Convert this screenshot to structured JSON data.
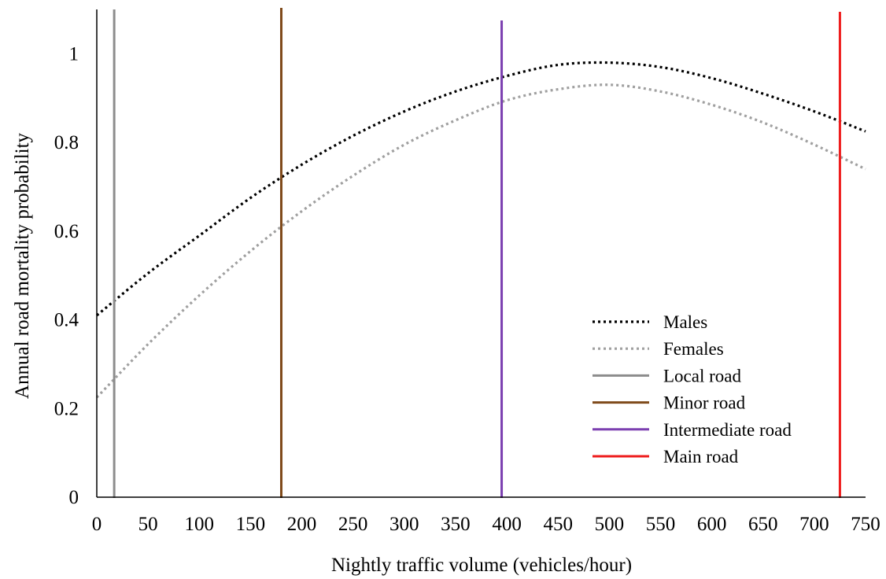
{
  "chart_data": {
    "type": "line",
    "title": "",
    "xlabel": "Nightly traffic volume (vehicles/hour)",
    "ylabel": "Annual road mortality probability",
    "xlim": [
      0,
      750
    ],
    "ylim": [
      0,
      1.0
    ],
    "x_ticks": [
      "0",
      "50",
      "100",
      "150",
      "200",
      "250",
      "300",
      "350",
      "400",
      "450",
      "500",
      "550",
      "600",
      "650",
      "700",
      "750"
    ],
    "y_ticks": [
      "0",
      "0.2",
      "0.4",
      "0.6",
      "0.8",
      "1"
    ],
    "grid": false,
    "legend_position": "right",
    "series": [
      {
        "name": "Males",
        "style": "dotted",
        "color": "#000000",
        "x": [
          0,
          50,
          100,
          150,
          200,
          250,
          300,
          350,
          400,
          450,
          500,
          550,
          600,
          650,
          700,
          750
        ],
        "y": [
          0.41,
          0.505,
          0.59,
          0.675,
          0.75,
          0.815,
          0.87,
          0.915,
          0.95,
          0.975,
          0.98,
          0.97,
          0.945,
          0.91,
          0.87,
          0.825
        ]
      },
      {
        "name": "Females",
        "style": "dotted",
        "color": "#a0a0a0",
        "x": [
          0,
          50,
          100,
          150,
          200,
          250,
          300,
          350,
          400,
          450,
          500,
          550,
          600,
          650,
          700,
          750
        ],
        "y": [
          0.225,
          0.345,
          0.455,
          0.555,
          0.645,
          0.725,
          0.795,
          0.85,
          0.895,
          0.92,
          0.93,
          0.915,
          0.885,
          0.845,
          0.795,
          0.74
        ]
      }
    ],
    "reference_lines": [
      {
        "name": "Local road",
        "x": 17,
        "color": "#8c8c8c"
      },
      {
        "name": "Minor road",
        "x": 180,
        "color": "#7f4a1a"
      },
      {
        "name": "Intermediate road",
        "x": 395,
        "color": "#7b3fb0"
      },
      {
        "name": "Main road",
        "x": 725,
        "color": "#ee1c1c"
      }
    ]
  }
}
